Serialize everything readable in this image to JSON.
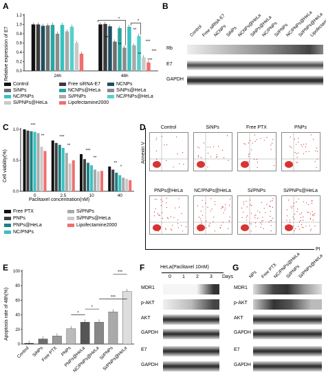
{
  "panels": {
    "A": "A",
    "B": "B",
    "C": "C",
    "D": "D",
    "E": "E",
    "F": "F",
    "G": "G"
  },
  "colors": {
    "Control": "#111111",
    "Free siRNA-E7": "#3a3a3a",
    "NCNPs": "#1f4e5f",
    "SiNPs": "#6d6d6d",
    "NCNPs@HeLa": "#2aa5a0",
    "SiNPs@HeLa": "#8b8b8b",
    "NC/PNPs": "#36c2c0",
    "Si/PNPs": "#a9a9a9",
    "NC/PNPs@HeLa": "#55d0cc",
    "Si/PNPs@HeLa": "#c9c9c9",
    "Lipofectamine2000": "#f06e6e",
    "Free PTX": "#111111",
    "PNPs": "#3f3f3f",
    "PNPs@HeLa": "#1f7f86"
  },
  "chart_data": [
    {
      "panel": "A",
      "type": "bar",
      "ylabel": "Relative expression of E7",
      "ylim": [
        0,
        1.2
      ],
      "yticks": [
        "0.0",
        "0.2",
        "0.4",
        "0.6",
        "0.8",
        "1.0",
        "1.2"
      ],
      "categories": [
        "24h",
        "48h"
      ],
      "series": [
        {
          "name": "Control",
          "values": [
            1.0,
            1.0
          ]
        },
        {
          "name": "Free siRNA-E7",
          "values": [
            1.0,
            1.01
          ]
        },
        {
          "name": "NCNPs",
          "values": [
            0.97,
            0.96
          ]
        },
        {
          "name": "SiNPs",
          "values": [
            0.98,
            0.63
          ]
        },
        {
          "name": "NCNPs@HeLa",
          "values": [
            0.99,
            0.92
          ]
        },
        {
          "name": "SiNPs@HeLa",
          "values": [
            0.8,
            0.5
          ]
        },
        {
          "name": "NC/PNPs",
          "values": [
            0.99,
            0.95
          ]
        },
        {
          "name": "Si/PNPs",
          "values": [
            0.85,
            0.55
          ]
        },
        {
          "name": "NC/PNPs@HeLa",
          "values": [
            0.95,
            0.75
          ]
        },
        {
          "name": "Si/PNPs@HeLa",
          "values": [
            0.6,
            0.29
          ]
        },
        {
          "name": "Lipofectamine2000",
          "values": [
            0.37,
            0.18
          ]
        }
      ],
      "annotations": [
        "**",
        "**",
        "***",
        "**",
        "**",
        "***",
        "***",
        "*",
        "*"
      ]
    },
    {
      "panel": "C",
      "type": "bar",
      "ylabel": "Cell viability(%)",
      "xlabel": "Paclitaxel concentration(nM)",
      "ylim": [
        0,
        1.0
      ],
      "yticks": [
        "0.0",
        "0.5",
        "1.0"
      ],
      "categories": [
        "0",
        "2.5",
        "10",
        "40"
      ],
      "series": [
        {
          "name": "Free PTX",
          "values": [
            1.0,
            0.82,
            0.6,
            0.4
          ]
        },
        {
          "name": "PNPs",
          "values": [
            0.98,
            0.78,
            0.52,
            0.35
          ]
        },
        {
          "name": "PNPs@HeLa",
          "values": [
            0.97,
            0.75,
            0.46,
            0.3
          ]
        },
        {
          "name": "NC/PNPs",
          "values": [
            0.96,
            0.7,
            0.42,
            0.26
          ]
        },
        {
          "name": "Si/PNPs",
          "values": [
            0.94,
            0.62,
            0.35,
            0.22
          ]
        },
        {
          "name": "Si/PNPs@HeLa",
          "values": [
            0.72,
            0.45,
            0.32,
            0.2
          ]
        },
        {
          "name": "Lipofectamine2000",
          "values": [
            0.65,
            0.5,
            0.33,
            0.18
          ]
        }
      ],
      "annotations": [
        "***",
        "**",
        "***",
        "**",
        "***",
        "**",
        "**",
        "*"
      ]
    },
    {
      "panel": "E",
      "type": "bar",
      "ylabel": "Apoptosis rate of 48h(%)",
      "ylim": [
        0,
        100
      ],
      "yticks": [
        "0",
        "20",
        "40",
        "60",
        "80",
        "100"
      ],
      "categories": [
        "Control",
        "SiNPs",
        "Free PTX",
        "PNPs",
        "PNPs@HeLa",
        "NC/PNPs@HeLa",
        "Si/PNPs",
        "Si/PNPs@HeLa"
      ],
      "values": [
        1,
        7,
        11,
        21,
        30,
        30,
        44,
        72
      ],
      "annotations": [
        "*",
        "*",
        "***",
        "***"
      ]
    }
  ],
  "A": {
    "legend": [
      "Control",
      "Free siRNA-E7",
      "NCNPs",
      "SiNPs",
      "NCNPs@HeLa",
      "SiNPs@HeLa",
      "NC/PNPs",
      "Si/PNPs",
      "NC/PNPs@HeLa",
      "Si/PNPs@HeLa",
      "Lipofectamine2000"
    ]
  },
  "B": {
    "columns": [
      "Control",
      "Free siRNA-E7",
      "NCNPs",
      "SiNPs",
      "NCNPs@HeLa",
      "SiNPs@HeLa",
      "NC/PNPs",
      "Si/PNPs",
      "NC/PNPs@HeLa",
      "Si/PNPs@HeLa",
      "Lipofectamine2000"
    ],
    "rows": [
      "Rb",
      "E7",
      "GAPDH"
    ]
  },
  "C": {
    "legend": [
      "Free PTX",
      "PNPs",
      "PNPs@HeLa",
      "NC/PNPs",
      "Si/PNPs",
      "Si/PNPs@HeLa",
      "Lipofectamine2000"
    ]
  },
  "D": {
    "yaxis": "Annexin V",
    "xaxis": "PI",
    "panels": [
      "Control",
      "SiNPs",
      "Free PTX",
      "PNPs",
      "PNPs@HeLa",
      "NC/PNPs@HeLa",
      "Si/PNPs",
      "Si/PNPs@HeLa"
    ]
  },
  "F": {
    "title": "HeLa(Paclitaxel 10nM)",
    "days": [
      "0",
      "1",
      "2",
      "3"
    ],
    "days_label": "Days",
    "rows": [
      "MDR1",
      "p-AKT",
      "AKT",
      "GAPDH",
      "E7",
      "GAPDH"
    ]
  },
  "G": {
    "columns": [
      "NPs",
      "Free PTX",
      "NC/PNPs@HeLa",
      "Si/PNPs",
      "Si/PNPs@HeLa"
    ],
    "rows": [
      "MDR1",
      "p-AKT",
      "AKT",
      "GAPDH",
      "E7",
      "GAPDH"
    ]
  }
}
